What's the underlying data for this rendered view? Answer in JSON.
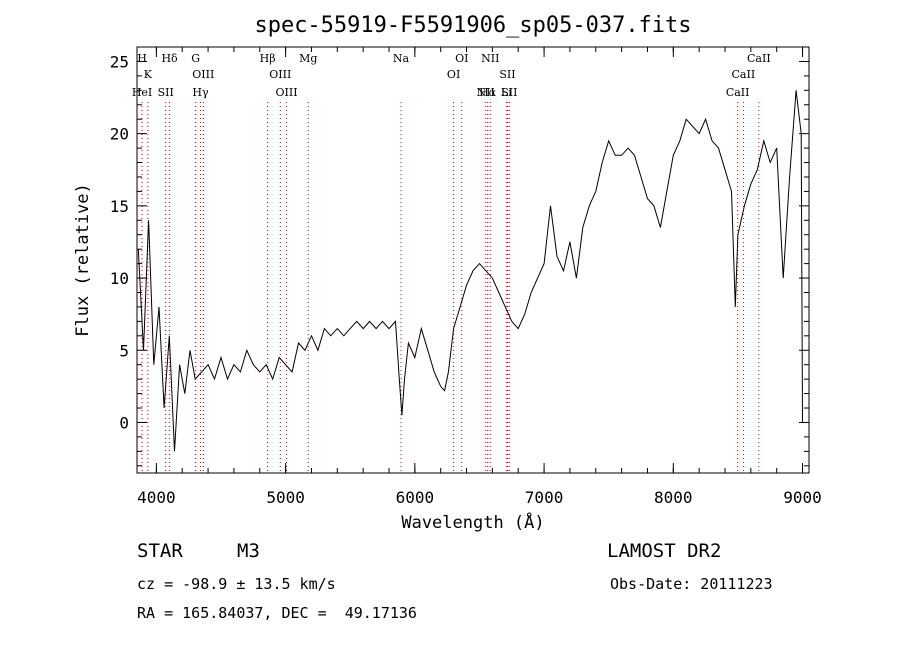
{
  "chart_data": {
    "type": "line",
    "title": "spec-55919-F5591906_sp05-037.fits",
    "xlabel": "Wavelength (Å)",
    "ylabel": "Flux (relative)",
    "xlim": [
      3850,
      9050
    ],
    "ylim": [
      -3.5,
      26
    ],
    "x_ticks": [
      4000,
      5000,
      6000,
      7000,
      8000,
      9000
    ],
    "y_ticks": [
      0,
      5,
      10,
      15,
      20,
      25
    ],
    "grid": false,
    "line_color": "#000000",
    "marker_line_color": "#cc0000",
    "series": [
      {
        "x": [
          3860,
          3900,
          3940,
          3980,
          4020,
          4060,
          4100,
          4140,
          4180,
          4220,
          4260,
          4300,
          4350,
          4400,
          4450,
          4500,
          4550,
          4600,
          4650,
          4700,
          4750,
          4800,
          4850,
          4900,
          4950,
          5000,
          5050,
          5100,
          5150,
          5200,
          5250,
          5300,
          5350,
          5400,
          5450,
          5500,
          5550,
          5600,
          5650,
          5700,
          5750,
          5800,
          5850,
          5880,
          5900,
          5920,
          5950,
          6000,
          6050,
          6100,
          6150,
          6200,
          6230,
          6260,
          6300,
          6350,
          6400,
          6450,
          6500,
          6550,
          6600,
          6650,
          6700,
          6750,
          6800,
          6850,
          6900,
          6950,
          7000,
          7050,
          7100,
          7150,
          7200,
          7250,
          7300,
          7350,
          7400,
          7450,
          7500,
          7550,
          7600,
          7650,
          7700,
          7750,
          7800,
          7850,
          7900,
          7950,
          8000,
          8050,
          8100,
          8150,
          8200,
          8250,
          8300,
          8350,
          8400,
          8450,
          8480,
          8500,
          8550,
          8600,
          8650,
          8700,
          8750,
          8800,
          8850,
          8900,
          8950,
          8990,
          9000
        ],
        "y": [
          12,
          5,
          14,
          4,
          8,
          1,
          6,
          -2,
          4,
          2,
          5,
          3,
          3.5,
          4,
          3,
          4.5,
          3,
          4,
          3.5,
          5,
          4,
          3.5,
          4,
          3,
          4.5,
          4,
          3.5,
          5.5,
          5,
          6,
          5,
          6.5,
          6,
          6.5,
          6,
          6.5,
          7,
          6.5,
          7,
          6.5,
          7,
          6.5,
          7,
          3,
          0.5,
          3,
          5.5,
          4.5,
          6.5,
          5,
          3.5,
          2.5,
          2.2,
          3.5,
          6.5,
          8,
          9.5,
          10.5,
          11,
          10.5,
          10,
          9,
          8,
          7,
          6.5,
          7.5,
          9,
          10,
          11,
          15,
          11.5,
          10.5,
          12.5,
          10,
          13.5,
          15,
          16,
          18,
          19.5,
          18.5,
          18.5,
          19,
          18.5,
          17,
          15.5,
          15,
          13.5,
          16,
          18.5,
          19.5,
          21,
          20.5,
          20,
          21,
          19.5,
          19,
          17.5,
          16,
          8,
          13,
          15,
          16.5,
          17.5,
          19.5,
          18,
          19,
          10,
          17,
          23,
          20,
          0
        ]
      }
    ],
    "line_markers": [
      {
        "label": "H",
        "wavelength": 3889
      },
      {
        "label": "K",
        "wavelength": 3934
      },
      {
        "label": "HeI",
        "wavelength": 3889
      },
      {
        "label": "Hδ",
        "wavelength": 4102
      },
      {
        "label": "SII",
        "wavelength": 4072
      },
      {
        "label": "G",
        "wavelength": 4304
      },
      {
        "label": "OIII",
        "wavelength": 4363
      },
      {
        "label": "Hγ",
        "wavelength": 4341
      },
      {
        "label": "Hβ",
        "wavelength": 4861
      },
      {
        "label": "OIII",
        "wavelength": 4959
      },
      {
        "label": "OIII",
        "wavelength": 5007
      },
      {
        "label": "Mg",
        "wavelength": 5175
      },
      {
        "label": "Na",
        "wavelength": 5893
      },
      {
        "label": "OI",
        "wavelength": 6363
      },
      {
        "label": "OI",
        "wavelength": 6300
      },
      {
        "label": "NII",
        "wavelength": 6584
      },
      {
        "label": "SII",
        "wavelength": 6717
      },
      {
        "label": "Hα",
        "wavelength": 6563
      },
      {
        "label": "SII",
        "wavelength": 6731
      },
      {
        "label": "NII",
        "wavelength": 6548
      },
      {
        "label": "Li",
        "wavelength": 6708
      },
      {
        "label": "CaII",
        "wavelength": 8662
      },
      {
        "label": "CaII",
        "wavelength": 8542
      },
      {
        "label": "CaII",
        "wavelength": 8498
      }
    ]
  },
  "info": {
    "class_label": "STAR",
    "subclass": "M3",
    "survey": "LAMOST DR2",
    "cz": "cz = -98.9 ± 13.5 km/s",
    "obs_date": "Obs-Date: 20111223",
    "coords": "RA = 165.84037, DEC =  49.17136"
  }
}
